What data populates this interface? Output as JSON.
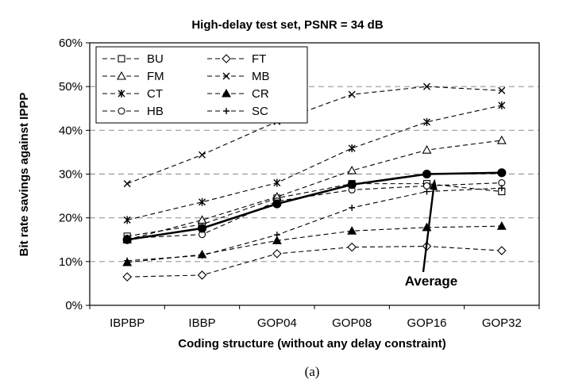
{
  "chart_data": {
    "type": "line",
    "title": "High-delay test set, PSNR = 34 dB",
    "xlabel": "Coding structure (without any delay constraint)",
    "ylabel": "Bit rate savings against IPPP",
    "categories": [
      "IBPBP",
      "IBBP",
      "GOP04",
      "GOP08",
      "GOP16",
      "GOP32"
    ],
    "ylim": [
      0,
      60
    ],
    "y_ticks": [
      "0%",
      "10%",
      "20%",
      "30%",
      "40%",
      "50%",
      "60%"
    ],
    "grid": "horizontal dashed",
    "legend_position": "top-left",
    "series": [
      {
        "name": "BU",
        "marker": "square-open",
        "values": [
          15.8,
          18.5,
          24.5,
          27.8,
          27.8,
          26.0
        ]
      },
      {
        "name": "FT",
        "marker": "diamond-open",
        "values": [
          6.5,
          6.9,
          11.8,
          13.3,
          13.5,
          12.5
        ]
      },
      {
        "name": "FM",
        "marker": "triangle-open",
        "values": [
          15.0,
          19.5,
          24.8,
          30.8,
          35.5,
          37.7
        ]
      },
      {
        "name": "MB",
        "marker": "x",
        "values": [
          27.8,
          34.4,
          42.0,
          48.2,
          50.0,
          49.1
        ]
      },
      {
        "name": "CT",
        "marker": "asterisk",
        "values": [
          19.5,
          23.6,
          28.0,
          35.9,
          41.9,
          45.7
        ]
      },
      {
        "name": "CR",
        "marker": "triangle-filled",
        "values": [
          9.8,
          11.6,
          14.8,
          17.0,
          17.8,
          18.1
        ]
      },
      {
        "name": "HB",
        "marker": "circle-open",
        "values": [
          15.3,
          16.2,
          23.8,
          26.4,
          27.3,
          28.0
        ]
      },
      {
        "name": "SC",
        "marker": "plus",
        "values": [
          10.2,
          11.4,
          16.1,
          22.3,
          26.0,
          26.8
        ]
      },
      {
        "name": "Average",
        "marker": "circle-filled",
        "bold": true,
        "values": [
          15.0,
          17.6,
          23.2,
          27.6,
          30.0,
          30.3
        ]
      }
    ],
    "annotations": [
      {
        "text": "Average",
        "points_to": "GOP16"
      }
    ],
    "caption": "(a)",
    "colors": {
      "line": "#000000",
      "grid": "#999999",
      "background": "#ffffff"
    }
  }
}
